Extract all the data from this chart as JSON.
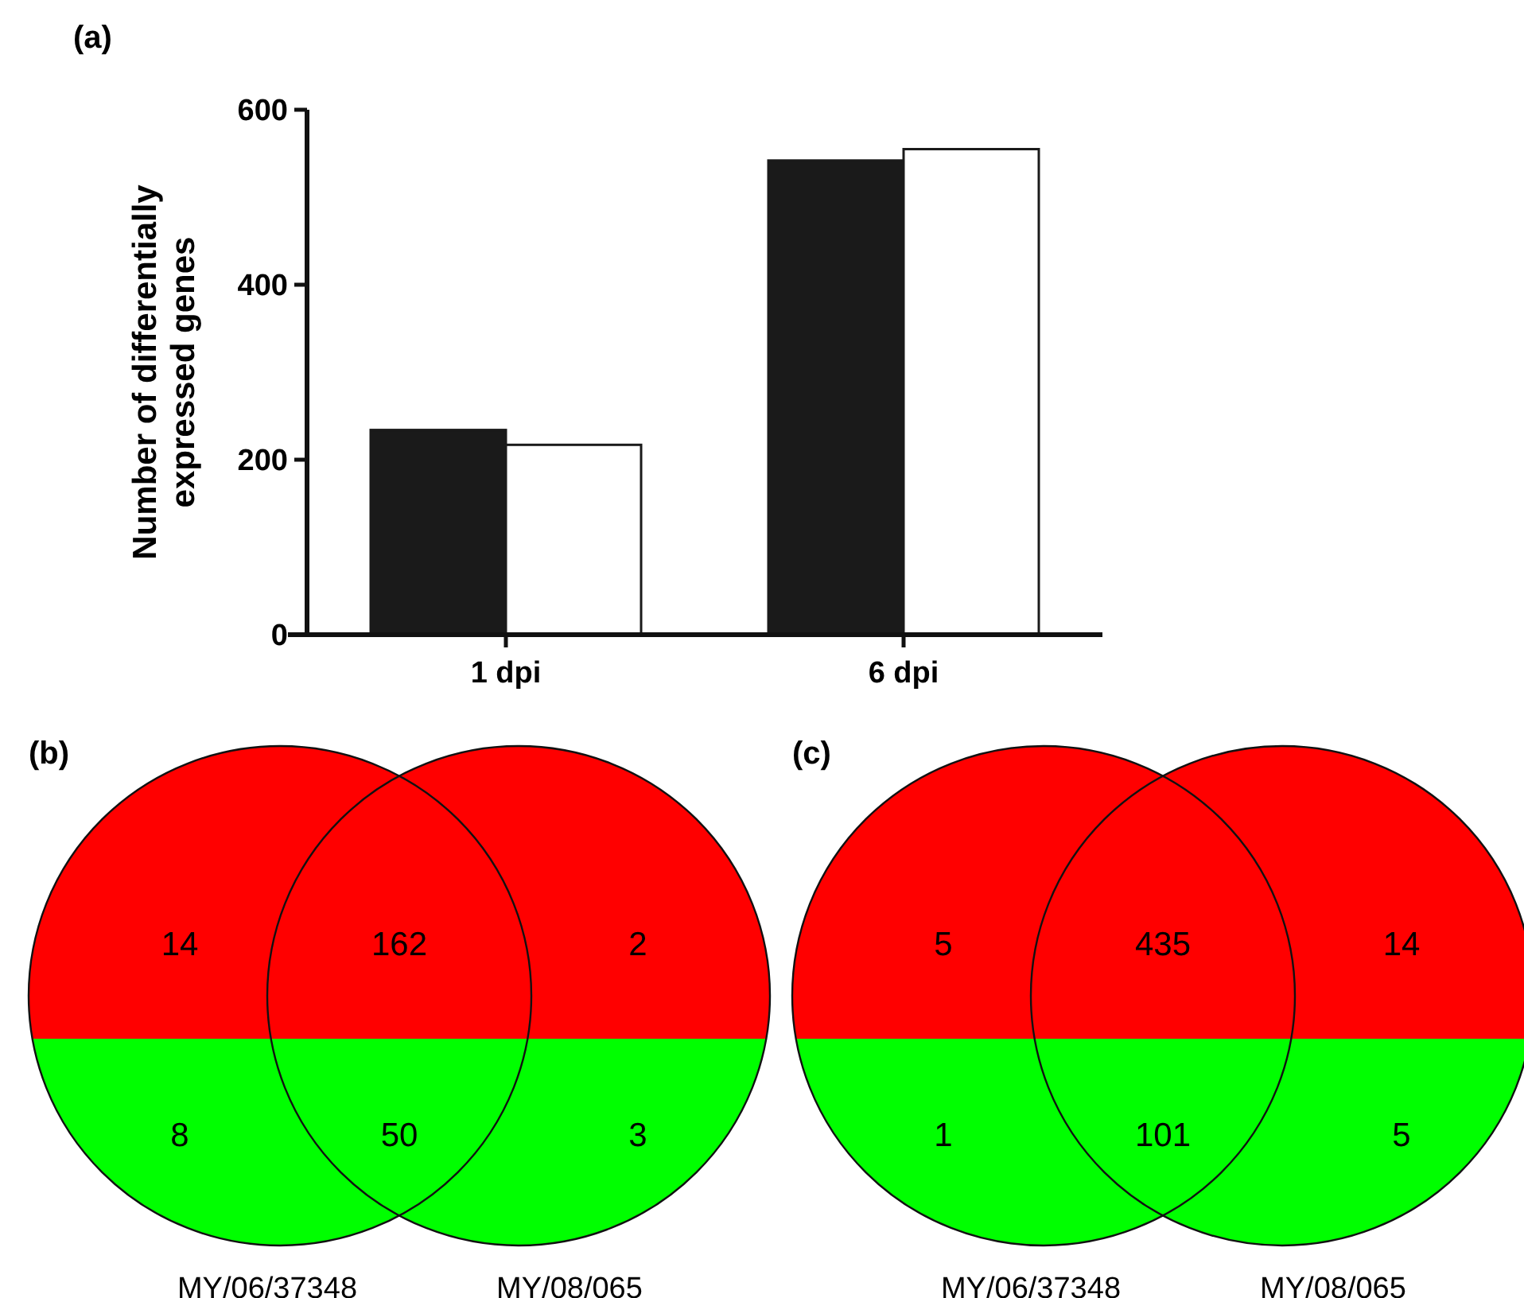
{
  "chart_data": [
    {
      "type": "bar",
      "title": "(a)",
      "ylabel": "Number of differentially expressed genes",
      "categories": [
        "1 dpi",
        "6 dpi"
      ],
      "series": [
        {
          "color": "#1a1a1a",
          "values": [
            234,
            542
          ]
        },
        {
          "color": "#ffffff",
          "values": [
            217,
            555
          ]
        }
      ],
      "ylim": [
        0,
        600
      ],
      "yticks": [
        0,
        200,
        400,
        600
      ]
    },
    {
      "type": "other",
      "title": "(b)",
      "categories": [
        "MY/06/37348",
        "MY/08/065"
      ],
      "colors": [
        "#ff0000",
        "#00ff00"
      ],
      "annotations": [
        "14",
        "162",
        "2",
        "8",
        "50",
        "3"
      ]
    },
    {
      "type": "other",
      "title": "(c)",
      "categories": [
        "MY/06/37348",
        "MY/08/065"
      ],
      "colors": [
        "#ff0000",
        "#00ff00"
      ],
      "annotations": [
        "5",
        "435",
        "14",
        "1",
        "101",
        "5"
      ]
    }
  ]
}
